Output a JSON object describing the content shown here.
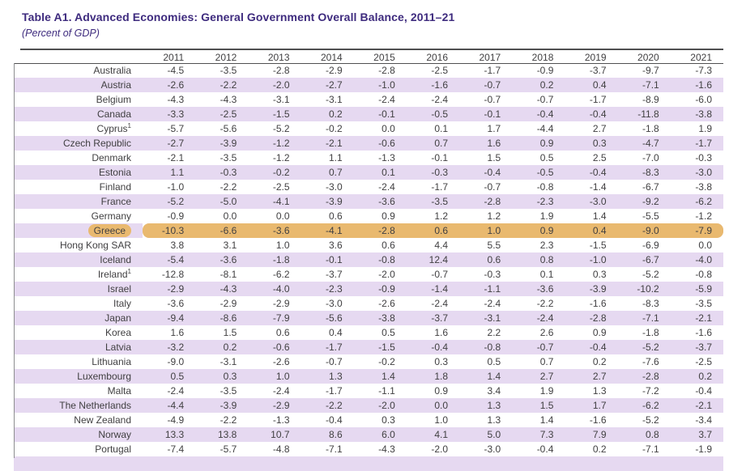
{
  "page": {
    "title": "Table A1. Advanced Economies: General Government Overall Balance, 2011–21",
    "subtitle": "(Percent of GDP)"
  },
  "colors": {
    "title_purple": "#3e2b7e",
    "row_stripe_lavender": "#e6d9f1",
    "highlight_orange": "#e9b96f",
    "rule_gray": "#4f4f51",
    "text_gray": "#414042"
  },
  "table": {
    "year_columns": [
      "2011",
      "2012",
      "2013",
      "2014",
      "2015",
      "2016",
      "2017",
      "2018",
      "2019",
      "2020",
      "2021"
    ],
    "rows": [
      {
        "country": "Australia",
        "values": [
          "-4.5",
          "-3.5",
          "-2.8",
          "-2.9",
          "-2.8",
          "-2.5",
          "-1.7",
          "-0.9",
          "-3.7",
          "-9.7",
          "-7.3"
        ]
      },
      {
        "country": "Austria",
        "values": [
          "-2.6",
          "-2.2",
          "-2.0",
          "-2.7",
          "-1.0",
          "-1.6",
          "-0.7",
          "0.2",
          "0.4",
          "-7.1",
          "-1.6"
        ]
      },
      {
        "country": "Belgium",
        "values": [
          "-4.3",
          "-4.3",
          "-3.1",
          "-3.1",
          "-2.4",
          "-2.4",
          "-0.7",
          "-0.7",
          "-1.7",
          "-8.9",
          "-6.0"
        ]
      },
      {
        "country": "Canada",
        "values": [
          "-3.3",
          "-2.5",
          "-1.5",
          "0.2",
          "-0.1",
          "-0.5",
          "-0.1",
          "-0.4",
          "-0.4",
          "-11.8",
          "-3.8"
        ]
      },
      {
        "country": "Cyprus",
        "footnote": "1",
        "values": [
          "-5.7",
          "-5.6",
          "-5.2",
          "-0.2",
          "0.0",
          "0.1",
          "1.7",
          "-4.4",
          "2.7",
          "-1.8",
          "1.9"
        ]
      },
      {
        "country": "Czech Republic",
        "values": [
          "-2.7",
          "-3.9",
          "-1.2",
          "-2.1",
          "-0.6",
          "0.7",
          "1.6",
          "0.9",
          "0.3",
          "-4.7",
          "-1.7"
        ]
      },
      {
        "country": "Denmark",
        "values": [
          "-2.1",
          "-3.5",
          "-1.2",
          "1.1",
          "-1.3",
          "-0.1",
          "1.5",
          "0.5",
          "2.5",
          "-7.0",
          "-0.3"
        ]
      },
      {
        "country": "Estonia",
        "values": [
          "1.1",
          "-0.3",
          "-0.2",
          "0.7",
          "0.1",
          "-0.3",
          "-0.4",
          "-0.5",
          "-0.4",
          "-8.3",
          "-3.0"
        ]
      },
      {
        "country": "Finland",
        "values": [
          "-1.0",
          "-2.2",
          "-2.5",
          "-3.0",
          "-2.4",
          "-1.7",
          "-0.7",
          "-0.8",
          "-1.4",
          "-6.7",
          "-3.8"
        ]
      },
      {
        "country": "France",
        "values": [
          "-5.2",
          "-5.0",
          "-4.1",
          "-3.9",
          "-3.6",
          "-3.5",
          "-2.8",
          "-2.3",
          "-3.0",
          "-9.2",
          "-6.2"
        ]
      },
      {
        "country": "Germany",
        "values": [
          "-0.9",
          "0.0",
          "0.0",
          "0.6",
          "0.9",
          "1.2",
          "1.2",
          "1.9",
          "1.4",
          "-5.5",
          "-1.2"
        ]
      },
      {
        "country": "Greece",
        "highlighted": true,
        "values": [
          "-10.3",
          "-6.6",
          "-3.6",
          "-4.1",
          "-2.8",
          "0.6",
          "1.0",
          "0.9",
          "0.4",
          "-9.0",
          "-7.9"
        ]
      },
      {
        "country": "Hong Kong SAR",
        "values": [
          "3.8",
          "3.1",
          "1.0",
          "3.6",
          "0.6",
          "4.4",
          "5.5",
          "2.3",
          "-1.5",
          "-6.9",
          "0.0"
        ]
      },
      {
        "country": "Iceland",
        "values": [
          "-5.4",
          "-3.6",
          "-1.8",
          "-0.1",
          "-0.8",
          "12.4",
          "0.6",
          "0.8",
          "-1.0",
          "-6.7",
          "-4.0"
        ]
      },
      {
        "country": "Ireland",
        "footnote": "1",
        "values": [
          "-12.8",
          "-8.1",
          "-6.2",
          "-3.7",
          "-2.0",
          "-0.7",
          "-0.3",
          "0.1",
          "0.3",
          "-5.2",
          "-0.8"
        ]
      },
      {
        "country": "Israel",
        "values": [
          "-2.9",
          "-4.3",
          "-4.0",
          "-2.3",
          "-0.9",
          "-1.4",
          "-1.1",
          "-3.6",
          "-3.9",
          "-10.2",
          "-5.9"
        ]
      },
      {
        "country": "Italy",
        "values": [
          "-3.6",
          "-2.9",
          "-2.9",
          "-3.0",
          "-2.6",
          "-2.4",
          "-2.4",
          "-2.2",
          "-1.6",
          "-8.3",
          "-3.5"
        ]
      },
      {
        "country": "Japan",
        "values": [
          "-9.4",
          "-8.6",
          "-7.9",
          "-5.6",
          "-3.8",
          "-3.7",
          "-3.1",
          "-2.4",
          "-2.8",
          "-7.1",
          "-2.1"
        ]
      },
      {
        "country": "Korea",
        "values": [
          "1.6",
          "1.5",
          "0.6",
          "0.4",
          "0.5",
          "1.6",
          "2.2",
          "2.6",
          "0.9",
          "-1.8",
          "-1.6"
        ]
      },
      {
        "country": "Latvia",
        "values": [
          "-3.2",
          "0.2",
          "-0.6",
          "-1.7",
          "-1.5",
          "-0.4",
          "-0.8",
          "-0.7",
          "-0.4",
          "-5.2",
          "-3.7"
        ]
      },
      {
        "country": "Lithuania",
        "values": [
          "-9.0",
          "-3.1",
          "-2.6",
          "-0.7",
          "-0.2",
          "0.3",
          "0.5",
          "0.7",
          "0.2",
          "-7.6",
          "-2.5"
        ]
      },
      {
        "country": "Luxembourg",
        "values": [
          "0.5",
          "0.3",
          "1.0",
          "1.3",
          "1.4",
          "1.8",
          "1.4",
          "2.7",
          "2.7",
          "-2.8",
          "0.2"
        ]
      },
      {
        "country": "Malta",
        "values": [
          "-2.4",
          "-3.5",
          "-2.4",
          "-1.7",
          "-1.1",
          "0.9",
          "3.4",
          "1.9",
          "1.3",
          "-7.2",
          "-0.4"
        ]
      },
      {
        "country": "The Netherlands",
        "values": [
          "-4.4",
          "-3.9",
          "-2.9",
          "-2.2",
          "-2.0",
          "0.0",
          "1.3",
          "1.5",
          "1.7",
          "-6.2",
          "-2.1"
        ]
      },
      {
        "country": "New Zealand",
        "values": [
          "-4.9",
          "-2.2",
          "-1.3",
          "-0.4",
          "0.3",
          "1.0",
          "1.3",
          "1.4",
          "-1.6",
          "-5.2",
          "-3.4"
        ]
      },
      {
        "country": "Norway",
        "values": [
          "13.3",
          "13.8",
          "10.7",
          "8.6",
          "6.0",
          "4.1",
          "5.0",
          "7.3",
          "7.9",
          "0.8",
          "3.7"
        ]
      },
      {
        "country": "Portugal",
        "values": [
          "-7.4",
          "-5.7",
          "-4.8",
          "-7.1",
          "-4.3",
          "-2.0",
          "-3.0",
          "-0.4",
          "0.2",
          "-7.1",
          "-1.9"
        ]
      }
    ]
  }
}
